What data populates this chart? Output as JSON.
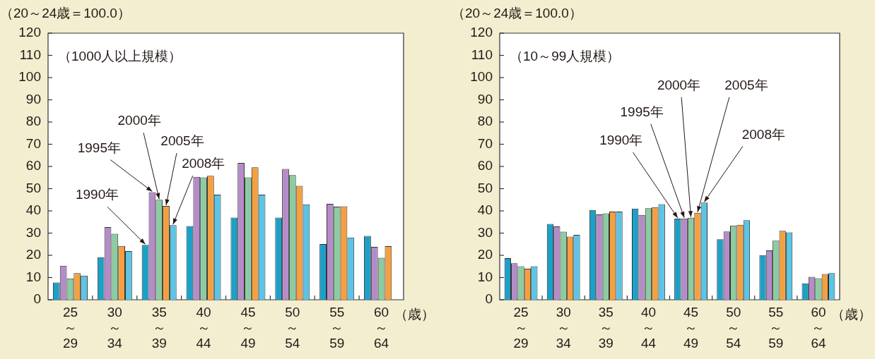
{
  "chart_data": [
    {
      "type": "bar",
      "title": "（1000人以上規模）",
      "ylabel": "（20～24歳＝100.0）",
      "xlabel": "（歳）",
      "categories": [
        "25\n～\n29",
        "30\n～\n34",
        "35\n～\n39",
        "40\n～\n44",
        "45\n～\n49",
        "50\n～\n54",
        "55\n～\n59",
        "60\n～\n64"
      ],
      "series": [
        {
          "name": "1990年",
          "color": "#1ba0c8",
          "values": [
            7.8,
            19.1,
            24.7,
            33.2,
            37,
            37,
            25.1,
            28.7
          ]
        },
        {
          "name": "1995年",
          "color": "#b48cc8",
          "values": [
            15.3,
            32.7,
            48.4,
            55.3,
            61.6,
            58.9,
            43.2,
            23.8
          ]
        },
        {
          "name": "2000年",
          "color": "#8ccca0",
          "values": [
            9.6,
            29.7,
            45,
            55.1,
            55.1,
            56.1,
            41.9,
            18.9
          ]
        },
        {
          "name": "2005年",
          "color": "#f5a040",
          "values": [
            12,
            24.2,
            42.2,
            55.8,
            59.6,
            51.3,
            42.1,
            24.1
          ]
        },
        {
          "name": "2008年",
          "color": "#5cc4e4",
          "values": [
            10.9,
            21.9,
            33.6,
            47.3,
            47.3,
            42.9,
            28,
            null
          ]
        }
      ],
      "ylim": [
        0,
        120
      ],
      "yticks": [
        0,
        10,
        20,
        30,
        40,
        50,
        60,
        70,
        80,
        90,
        100,
        110,
        120
      ],
      "grid": false,
      "legend": false
    },
    {
      "type": "bar",
      "title": "（10～99人規模）",
      "ylabel": "（20～24歳＝100.0）",
      "xlabel": "（歳）",
      "categories": [
        "25\n～\n29",
        "30\n～\n34",
        "35\n～\n39",
        "40\n～\n44",
        "45\n～\n49",
        "50\n～\n54",
        "55\n～\n59",
        "60\n～\n64"
      ],
      "series": [
        {
          "name": "1990年",
          "color": "#1ba0c8",
          "values": [
            18.7,
            34.1,
            40.4,
            41,
            36.5,
            27.2,
            20.1,
            7.4
          ]
        },
        {
          "name": "1995年",
          "color": "#b48cc8",
          "values": [
            16.4,
            33,
            38.4,
            38.2,
            36.6,
            30.7,
            22.2,
            10.3
          ]
        },
        {
          "name": "2000年",
          "color": "#8ccca0",
          "values": [
            15.1,
            30.6,
            38.9,
            41.2,
            36.9,
            33.4,
            26.6,
            9.7
          ]
        },
        {
          "name": "2005年",
          "color": "#f5a040",
          "values": [
            14,
            28.4,
            39.7,
            41.7,
            39.1,
            33.7,
            31,
            11.6
          ]
        },
        {
          "name": "2008年",
          "color": "#5cc4e4",
          "values": [
            15.1,
            29.2,
            39.7,
            43,
            43.7,
            35.8,
            30.3,
            12
          ]
        }
      ],
      "ylim": [
        0,
        120
      ],
      "yticks": [
        0,
        10,
        20,
        30,
        40,
        50,
        60,
        70,
        80,
        90,
        100,
        110,
        120
      ],
      "grid": false,
      "legend": false
    }
  ]
}
